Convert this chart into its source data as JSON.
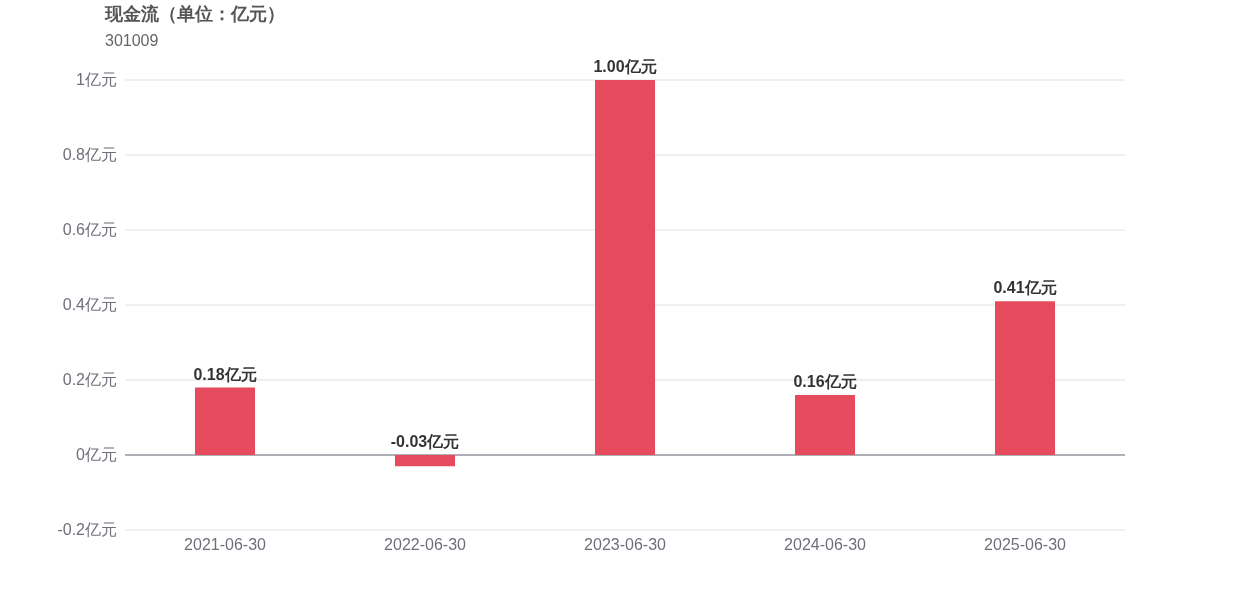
{
  "chart_data": {
    "type": "bar",
    "title": "现金流（单位：亿元）",
    "subtitle": "301009",
    "categories": [
      "2021-06-30",
      "2022-06-30",
      "2023-06-30",
      "2024-06-30",
      "2025-06-30"
    ],
    "values": [
      0.18,
      -0.03,
      1.0,
      0.16,
      0.41
    ],
    "value_labels": [
      "0.18亿元",
      "-0.03亿元",
      "1.00亿元",
      "0.16亿元",
      "0.41亿元"
    ],
    "color": "#e64b5d",
    "ylim": [
      -0.2,
      1
    ],
    "yticks": [
      {
        "value": -0.2,
        "label": "-0.2亿元"
      },
      {
        "value": 0,
        "label": "0亿元"
      },
      {
        "value": 0.2,
        "label": "0.2亿元"
      },
      {
        "value": 0.4,
        "label": "0.4亿元"
      },
      {
        "value": 0.6,
        "label": "0.6亿元"
      },
      {
        "value": 0.8,
        "label": "0.8亿元"
      },
      {
        "value": 1,
        "label": "1亿元"
      }
    ],
    "grid": "y"
  }
}
